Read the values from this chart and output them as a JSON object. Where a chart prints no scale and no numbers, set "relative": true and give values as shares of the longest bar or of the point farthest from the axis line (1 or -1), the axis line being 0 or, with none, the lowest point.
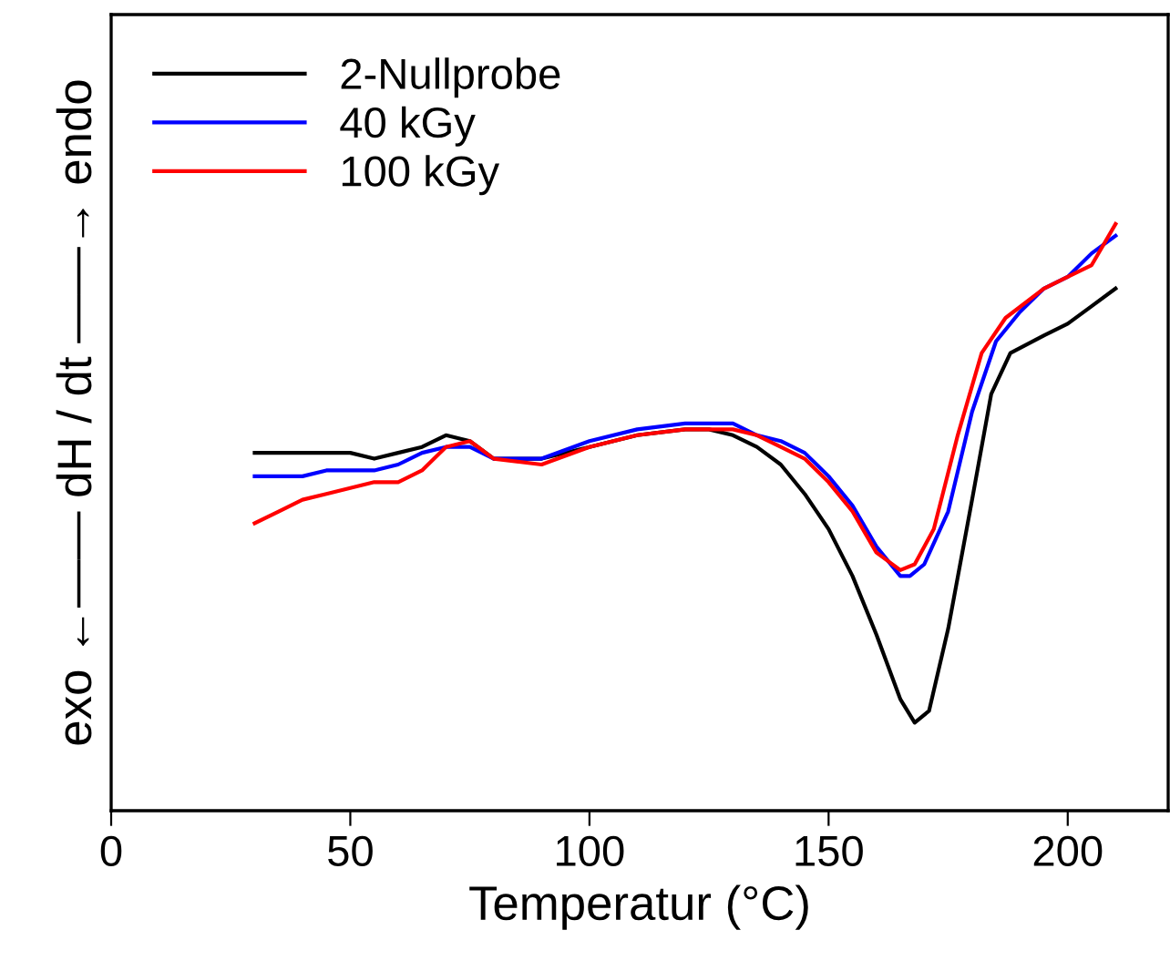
{
  "chart_data": {
    "type": "line",
    "relative": true,
    "xlabel": "Temperatur (°C)",
    "ylabel": "exo ←—— dH / dt ——→ endo",
    "xlim": [
      0,
      221
    ],
    "xticks": [
      0,
      50,
      100,
      150,
      200
    ],
    "tick_labels": "x",
    "legend": "top left",
    "grid": false,
    "series": [
      {
        "name": "2-Nullprobe",
        "color": "#000000",
        "x": [
          30,
          35,
          40,
          45,
          50,
          55,
          60,
          65,
          70,
          75,
          80,
          90,
          100,
          110,
          120,
          125,
          130,
          135,
          140,
          145,
          150,
          155,
          160,
          165,
          168,
          171,
          175,
          180,
          184,
          188,
          195,
          200,
          205,
          210
        ],
        "values": [
          0.61,
          0.61,
          0.61,
          0.61,
          0.61,
          0.6,
          0.61,
          0.62,
          0.64,
          0.63,
          0.6,
          0.6,
          0.62,
          0.64,
          0.65,
          0.65,
          0.64,
          0.62,
          0.59,
          0.54,
          0.48,
          0.4,
          0.3,
          0.19,
          0.15,
          0.17,
          0.31,
          0.53,
          0.71,
          0.78,
          0.81,
          0.83,
          0.86,
          0.89
        ]
      },
      {
        "name": "40 kGy",
        "color": "#0000ff",
        "x": [
          30,
          35,
          40,
          45,
          50,
          55,
          60,
          65,
          70,
          75,
          80,
          90,
          100,
          110,
          120,
          125,
          130,
          135,
          140,
          145,
          150,
          155,
          160,
          165,
          167,
          170,
          175,
          180,
          185,
          190,
          195,
          200,
          205,
          210
        ],
        "values": [
          0.57,
          0.57,
          0.57,
          0.58,
          0.58,
          0.58,
          0.59,
          0.61,
          0.62,
          0.62,
          0.6,
          0.6,
          0.63,
          0.65,
          0.66,
          0.66,
          0.66,
          0.64,
          0.63,
          0.61,
          0.57,
          0.52,
          0.45,
          0.4,
          0.4,
          0.42,
          0.51,
          0.68,
          0.8,
          0.85,
          0.89,
          0.91,
          0.95,
          0.98
        ]
      },
      {
        "name": "100 kGy",
        "color": "#ff0000",
        "x": [
          30,
          35,
          40,
          45,
          50,
          55,
          60,
          65,
          70,
          75,
          80,
          90,
          100,
          110,
          120,
          125,
          130,
          135,
          140,
          145,
          150,
          155,
          160,
          165,
          168,
          172,
          177,
          182,
          187,
          195,
          200,
          205,
          210
        ],
        "values": [
          0.49,
          0.51,
          0.53,
          0.54,
          0.55,
          0.56,
          0.56,
          0.58,
          0.62,
          0.63,
          0.6,
          0.59,
          0.62,
          0.64,
          0.65,
          0.65,
          0.65,
          0.64,
          0.62,
          0.6,
          0.56,
          0.51,
          0.44,
          0.41,
          0.42,
          0.48,
          0.64,
          0.78,
          0.84,
          0.89,
          0.91,
          0.93,
          1
        ]
      }
    ]
  }
}
